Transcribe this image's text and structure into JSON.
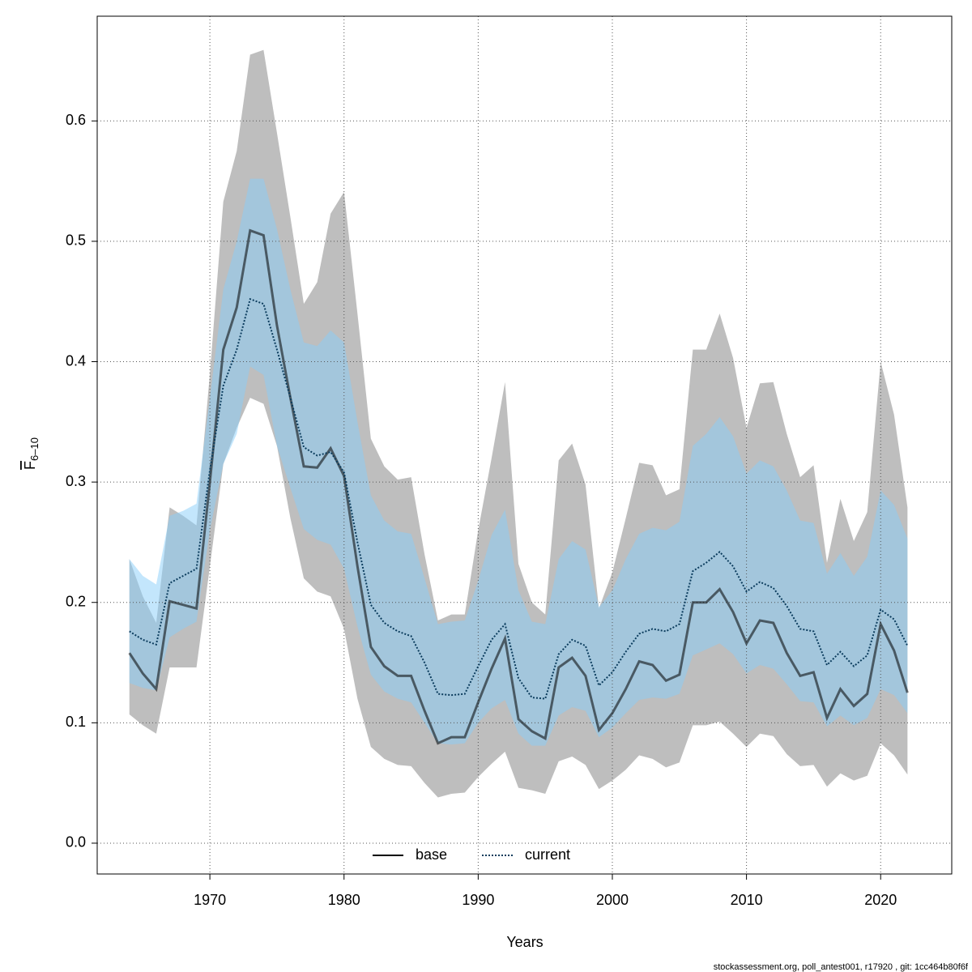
{
  "chart_data": {
    "type": "line",
    "x_label": "Years",
    "y_label": "F",
    "y_label_subscript": "6–10",
    "footer": "stockassessment.org, poll_antest001, r17920 , git: 1cc464b80f6f",
    "x": [
      1964,
      1965,
      1966,
      1967,
      1968,
      1969,
      1970,
      1971,
      1972,
      1973,
      1974,
      1975,
      1976,
      1977,
      1978,
      1979,
      1980,
      1981,
      1982,
      1983,
      1984,
      1985,
      1986,
      1987,
      1988,
      1989,
      1990,
      1991,
      1992,
      1993,
      1994,
      1995,
      1996,
      1997,
      1998,
      1999,
      2000,
      2001,
      2002,
      2003,
      2004,
      2005,
      2006,
      2007,
      2008,
      2009,
      2010,
      2011,
      2012,
      2013,
      2014,
      2015,
      2016,
      2017,
      2018,
      2019,
      2020,
      2021,
      2022
    ],
    "xlim": [
      1961.6,
      2025.3
    ],
    "ylim": [
      -0.0256,
      0.687
    ],
    "xticks": [
      1970,
      1980,
      1990,
      2000,
      2010,
      2020
    ],
    "yticks": [
      {
        "value": 0,
        "label": "0.0"
      },
      0.1,
      0.2,
      0.3,
      0.4,
      0.5,
      0.6
    ],
    "grid": true,
    "legend_position": "bottom",
    "series": [
      {
        "name": "base",
        "color": "#000000",
        "line_style": "solid",
        "band_color": "#bebebe",
        "band_opacity": 1,
        "values": [
          0.158,
          0.141,
          0.128,
          0.201,
          0.198,
          0.195,
          0.3,
          0.41,
          0.445,
          0.509,
          0.505,
          0.43,
          0.37,
          0.313,
          0.312,
          0.328,
          0.305,
          0.23,
          0.163,
          0.147,
          0.139,
          0.139,
          0.11,
          0.083,
          0.088,
          0.088,
          0.117,
          0.145,
          0.17,
          0.103,
          0.093,
          0.087,
          0.146,
          0.154,
          0.139,
          0.094,
          0.108,
          0.128,
          0.151,
          0.148,
          0.135,
          0.14,
          0.2,
          0.2,
          0.211,
          0.192,
          0.166,
          0.185,
          0.183,
          0.158,
          0.139,
          0.142,
          0.104,
          0.128,
          0.114,
          0.124,
          0.182,
          0.16,
          0.125
        ],
        "upper": [
          0.236,
          0.205,
          0.183,
          0.279,
          0.272,
          0.264,
          0.39,
          0.533,
          0.575,
          0.655,
          0.659,
          0.59,
          0.52,
          0.448,
          0.466,
          0.523,
          0.541,
          0.44,
          0.336,
          0.313,
          0.302,
          0.304,
          0.24,
          0.185,
          0.19,
          0.19,
          0.26,
          0.32,
          0.383,
          0.232,
          0.2,
          0.19,
          0.318,
          0.332,
          0.298,
          0.195,
          0.225,
          0.27,
          0.316,
          0.314,
          0.289,
          0.294,
          0.41,
          0.41,
          0.44,
          0.403,
          0.345,
          0.382,
          0.383,
          0.34,
          0.304,
          0.314,
          0.233,
          0.286,
          0.251,
          0.275,
          0.4,
          0.356,
          0.279
        ],
        "lower": [
          0.107,
          0.098,
          0.091,
          0.146,
          0.146,
          0.146,
          0.23,
          0.315,
          0.345,
          0.37,
          0.365,
          0.33,
          0.27,
          0.22,
          0.209,
          0.205,
          0.178,
          0.12,
          0.08,
          0.07,
          0.065,
          0.064,
          0.05,
          0.038,
          0.041,
          0.042,
          0.055,
          0.066,
          0.076,
          0.046,
          0.044,
          0.041,
          0.068,
          0.072,
          0.065,
          0.045,
          0.052,
          0.061,
          0.073,
          0.07,
          0.063,
          0.067,
          0.098,
          0.098,
          0.101,
          0.091,
          0.08,
          0.091,
          0.089,
          0.074,
          0.064,
          0.065,
          0.047,
          0.058,
          0.052,
          0.056,
          0.083,
          0.073,
          0.057
        ]
      },
      {
        "name": "current",
        "color": "#0b3c5d",
        "line_style": "dotted",
        "band_color": "#87cefa",
        "band_opacity": 0.5,
        "values": [
          0.176,
          0.169,
          0.165,
          0.216,
          0.222,
          0.228,
          0.31,
          0.38,
          0.41,
          0.452,
          0.448,
          0.41,
          0.37,
          0.329,
          0.322,
          0.325,
          0.308,
          0.25,
          0.198,
          0.183,
          0.176,
          0.172,
          0.15,
          0.124,
          0.123,
          0.124,
          0.147,
          0.169,
          0.182,
          0.137,
          0.121,
          0.12,
          0.157,
          0.169,
          0.164,
          0.131,
          0.142,
          0.159,
          0.174,
          0.178,
          0.176,
          0.182,
          0.226,
          0.233,
          0.242,
          0.23,
          0.209,
          0.217,
          0.212,
          0.197,
          0.178,
          0.176,
          0.148,
          0.159,
          0.147,
          0.156,
          0.194,
          0.186,
          0.164
        ],
        "upper": [
          0.236,
          0.222,
          0.215,
          0.272,
          0.276,
          0.282,
          0.37,
          0.46,
          0.5,
          0.552,
          0.552,
          0.51,
          0.46,
          0.416,
          0.413,
          0.426,
          0.416,
          0.35,
          0.289,
          0.268,
          0.259,
          0.257,
          0.22,
          0.182,
          0.184,
          0.185,
          0.218,
          0.256,
          0.277,
          0.21,
          0.184,
          0.182,
          0.236,
          0.251,
          0.244,
          0.196,
          0.21,
          0.236,
          0.257,
          0.262,
          0.26,
          0.267,
          0.33,
          0.34,
          0.354,
          0.338,
          0.307,
          0.318,
          0.313,
          0.293,
          0.268,
          0.266,
          0.224,
          0.241,
          0.222,
          0.238,
          0.293,
          0.281,
          0.253
        ],
        "lower": [
          0.133,
          0.129,
          0.127,
          0.171,
          0.178,
          0.184,
          0.26,
          0.315,
          0.34,
          0.396,
          0.389,
          0.33,
          0.295,
          0.261,
          0.252,
          0.248,
          0.228,
          0.18,
          0.14,
          0.126,
          0.12,
          0.117,
          0.1,
          0.083,
          0.082,
          0.083,
          0.1,
          0.112,
          0.119,
          0.091,
          0.081,
          0.081,
          0.106,
          0.113,
          0.11,
          0.088,
          0.096,
          0.108,
          0.119,
          0.121,
          0.12,
          0.124,
          0.156,
          0.161,
          0.166,
          0.157,
          0.141,
          0.148,
          0.145,
          0.132,
          0.118,
          0.117,
          0.097,
          0.106,
          0.098,
          0.104,
          0.128,
          0.123,
          0.108
        ]
      }
    ]
  }
}
